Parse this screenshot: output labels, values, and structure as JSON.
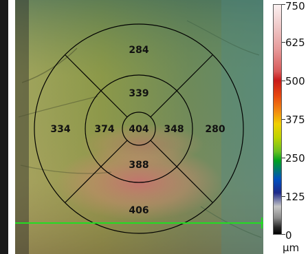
{
  "sectors": {
    "center": "404",
    "inner_superior": "339",
    "inner_nasal": "374",
    "inner_temporal": "348",
    "inner_inferior": "388",
    "outer_superior": "284",
    "outer_nasal": "334",
    "outer_temporal": "280",
    "outer_inferior": "406"
  },
  "color_scale": {
    "labels": [
      "750",
      "625",
      "500",
      "375",
      "250",
      "125",
      "0"
    ],
    "unit": "µm"
  },
  "colors": {
    "grid_lines": "#000000",
    "scan_line": "#22dd22",
    "background_strip": "#1a1a1a"
  }
}
